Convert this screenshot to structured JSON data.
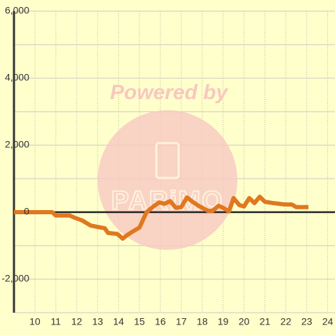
{
  "chart_data": {
    "type": "line",
    "watermark": "Powered by",
    "watermark_logo": "PARiMO",
    "x": [
      9,
      10.83,
      11,
      11.67,
      11.84,
      12.27,
      12.67,
      13,
      13.34,
      13.5,
      13.94,
      14.2,
      14.4,
      14.67,
      15,
      15.34,
      15.67,
      15.94,
      16.2,
      16.47,
      16.74,
      17,
      17.27,
      17.54,
      17.88,
      18.28,
      18.5,
      18.78,
      19,
      19.28,
      19.5,
      19.78,
      20,
      20.25,
      20.5,
      20.75,
      21,
      21.4,
      21.68,
      21.95,
      22.28,
      22.5,
      23.08
    ],
    "series": [
      {
        "color": "#e07820",
        "values": [
          0,
          0,
          -100,
          -100,
          -150,
          -250,
          -400,
          -440,
          -480,
          -620,
          -650,
          -790,
          -690,
          -580,
          -460,
          0,
          170,
          290,
          250,
          330,
          130,
          150,
          440,
          310,
          170,
          40,
          40,
          190,
          130,
          20,
          420,
          210,
          170,
          420,
          270,
          460,
          310,
          270,
          250,
          230,
          230,
          150,
          150
        ]
      }
    ],
    "xlim": [
      9,
      24.35
    ],
    "xticks": [
      10,
      11,
      12,
      13,
      14,
      15,
      16,
      17,
      18,
      19,
      20,
      21,
      22,
      23,
      24
    ],
    "ylim": [
      -3000,
      6000
    ],
    "yticks": [
      {
        "value": -2000,
        "label": "-2,000"
      },
      0,
      {
        "value": 2000,
        "label": "2,000"
      },
      {
        "value": 4000,
        "label": "4,000"
      },
      {
        "value": 6000,
        "label": "6,000"
      }
    ],
    "y_minor_ticks": [
      -3000,
      -1000,
      1000,
      3000,
      5000
    ],
    "grid": true
  }
}
